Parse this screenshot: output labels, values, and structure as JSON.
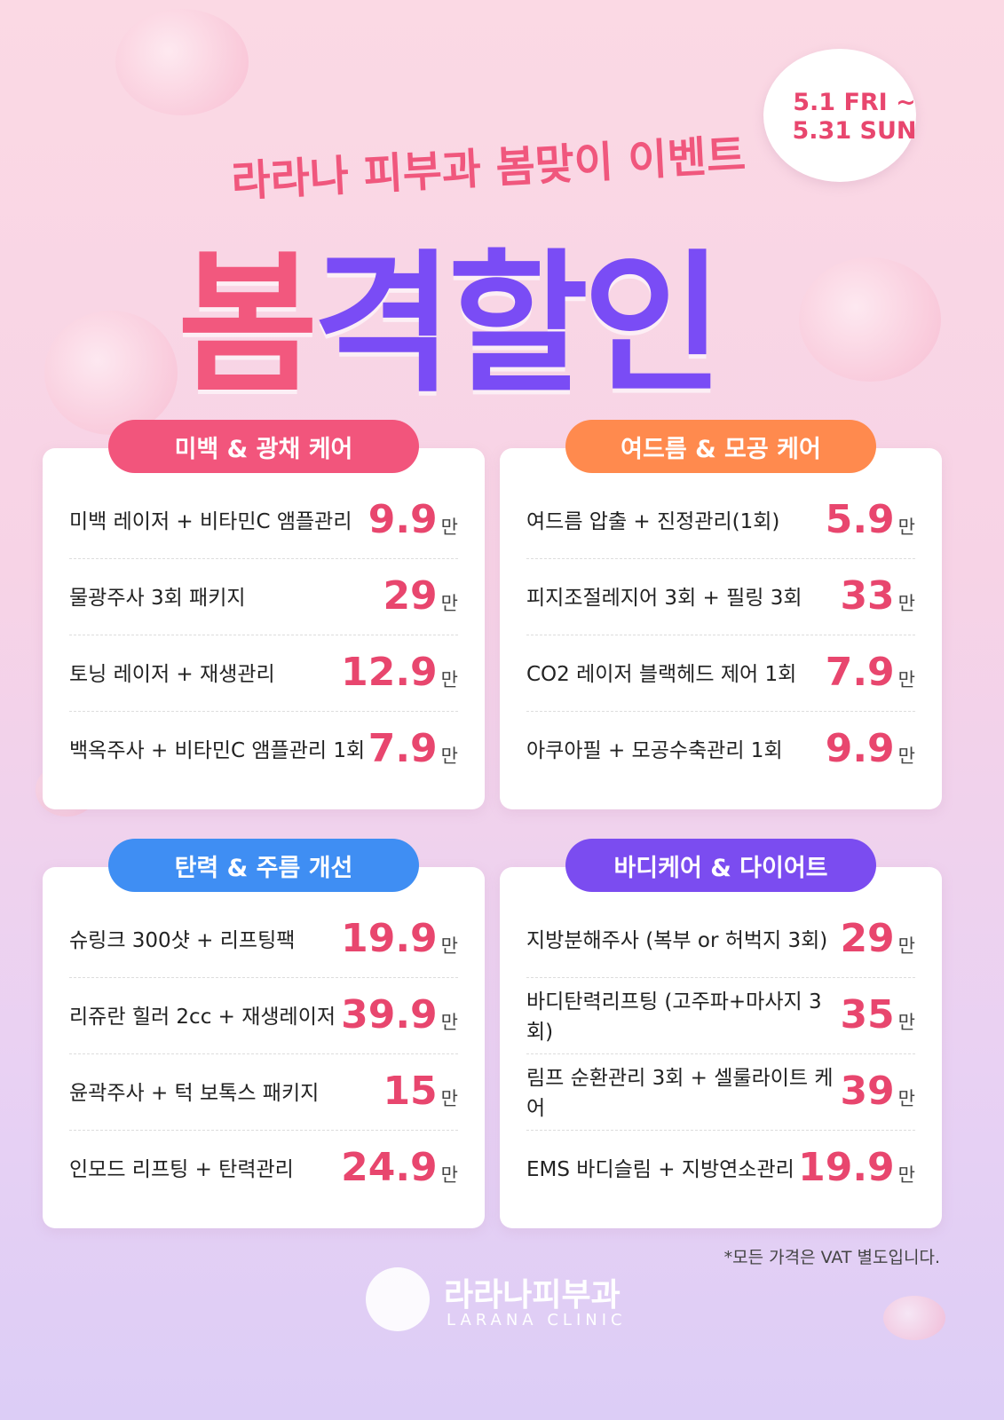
{
  "header": {
    "subtitle": "라라나 피부과 봄맞이 이벤트",
    "title_parts": [
      "봄",
      "격할인"
    ],
    "date_lines": [
      "5.1 FRI ~",
      "5.31 SUN"
    ]
  },
  "price_unit": "만",
  "sections": [
    {
      "title": "미백 & 광채 케어",
      "color": "#f2557c",
      "items": [
        {
          "name": "미백 레이저 + 비타민C 앰플관리",
          "price": 9.9
        },
        {
          "name": "물광주사 3회 패키지",
          "price": 29
        },
        {
          "name": "토닝 레이저 + 재생관리",
          "price": 12.9
        },
        {
          "name": "백옥주사 + 비타민C 앰플관리 1회",
          "price": 7.9
        }
      ]
    },
    {
      "title": "여드름 & 모공 케어",
      "color": "#ff8a4e",
      "items": [
        {
          "name": "여드름 압출 + 진정관리(1회)",
          "price": 5.9
        },
        {
          "name": "피지조절레지어 3회 + 필링 3회",
          "price": 33
        },
        {
          "name": "CO2 레이저 블랙헤드 제어 1회",
          "price": 7.9
        },
        {
          "name": "아쿠아필 + 모공수축관리 1회",
          "price": 9.9
        }
      ]
    },
    {
      "title": "탄력 & 주름 개선",
      "color": "#3f8ef3",
      "items": [
        {
          "name": "슈링크 300샷 + 리프팅팩",
          "price": 19.9
        },
        {
          "name": "리쥬란 힐러 2cc + 재생레이저",
          "price": 39.9
        },
        {
          "name": "윤곽주사 + 턱 보톡스 패키지",
          "price": 15
        },
        {
          "name": "인모드 리프팅 + 탄력관리",
          "price": 24.9
        }
      ]
    },
    {
      "title": "바디케어 & 다이어트",
      "color": "#7b4cf0",
      "items": [
        {
          "name": "지방분해주사 (복부 or 허벅지 3회)",
          "price": 29
        },
        {
          "name": "바디탄력리프팅 (고주파+마사지 3회)",
          "price": 35
        },
        {
          "name": "림프 순환관리 3회 + 셀룰라이트 케어",
          "price": 39
        },
        {
          "name": "EMS 바디슬림 + 지방연소관리",
          "price": 19.9
        }
      ]
    }
  ],
  "footer": {
    "note": "*모든 가격은 VAT 별도입니다.",
    "logo_name": "라라나피부과",
    "logo_sub": "LARANA CLINIC"
  }
}
